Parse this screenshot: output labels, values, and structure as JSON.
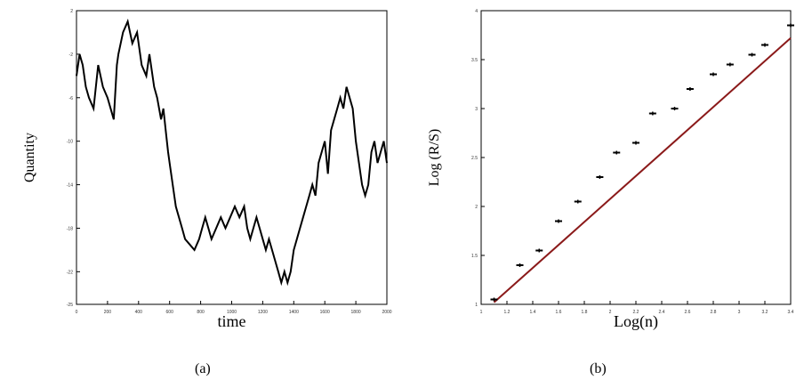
{
  "captions": {
    "a": "(a)",
    "b": "(b)"
  },
  "chart_data": [
    {
      "type": "line",
      "xlabel": "time",
      "ylabel": "Quantity",
      "xlim": [
        0,
        2000
      ],
      "ylim": [
        -25,
        2
      ],
      "x_ticks": [
        0,
        200,
        400,
        600,
        800,
        1000,
        1200,
        1400,
        1600,
        1800,
        2000
      ],
      "y_ticks": [
        2,
        -2,
        -6,
        -10,
        -14,
        -18,
        -22,
        -25
      ],
      "grid": false,
      "series": [
        {
          "color": "#000000",
          "x": [
            0,
            20,
            40,
            60,
            80,
            110,
            140,
            170,
            200,
            220,
            240,
            260,
            270,
            285,
            300,
            330,
            360,
            390,
            420,
            450,
            470,
            500,
            520,
            545,
            560,
            575,
            590,
            600,
            620,
            640,
            660,
            680,
            700,
            730,
            760,
            790,
            810,
            830,
            850,
            870,
            900,
            930,
            960,
            990,
            1020,
            1050,
            1080,
            1100,
            1120,
            1140,
            1160,
            1180,
            1200,
            1220,
            1240,
            1260,
            1280,
            1300,
            1320,
            1340,
            1360,
            1380,
            1400,
            1420,
            1440,
            1460,
            1480,
            1500,
            1520,
            1540,
            1560,
            1580,
            1600,
            1620,
            1640,
            1660,
            1680,
            1700,
            1720,
            1740,
            1760,
            1780,
            1800,
            1820,
            1840,
            1860,
            1880,
            1900,
            1920,
            1940,
            1960,
            1980,
            2000
          ],
          "y": [
            -4,
            -2,
            -3,
            -5,
            -6,
            -7,
            -3,
            -5,
            -6,
            -7,
            -8,
            -3,
            -2,
            -1,
            0,
            1,
            -1,
            0,
            -3,
            -4,
            -2,
            -5,
            -6,
            -8,
            -7,
            -9,
            -11,
            -12,
            -14,
            -16,
            -17,
            -18,
            -19,
            -19.5,
            -20,
            -19,
            -18,
            -17,
            -18,
            -19,
            -18,
            -17,
            -18,
            -17,
            -16,
            -17,
            -16,
            -18,
            -19,
            -18,
            -17,
            -18,
            -19,
            -20,
            -19,
            -20,
            -21,
            -22,
            -23,
            -22,
            -23,
            -22,
            -20,
            -19,
            -18,
            -17,
            -16,
            -15,
            -14,
            -15,
            -12,
            -11,
            -10,
            -13,
            -9,
            -8,
            -7,
            -6,
            -7,
            -5,
            -6,
            -7,
            -10,
            -12,
            -14,
            -15,
            -14,
            -11,
            -10,
            -12,
            -11,
            -10,
            -12
          ]
        }
      ]
    },
    {
      "type": "scatter",
      "xlabel": "Log(n)",
      "ylabel": "Log (R/S)",
      "xlim": [
        1,
        3.4
      ],
      "ylim": [
        1,
        4
      ],
      "x_ticks": [
        1,
        1.2,
        1.4,
        1.6,
        1.8,
        2,
        2.2,
        2.4,
        2.6,
        2.8,
        3,
        3.2,
        3.4
      ],
      "y_ticks": [
        1,
        1.5,
        2,
        2.5,
        3,
        3.5,
        4
      ],
      "grid": false,
      "fit_line": {
        "color": "#8b1a1a",
        "x": [
          1.1,
          3.4
        ],
        "y": [
          1.02,
          3.72
        ]
      },
      "series": [
        {
          "color": "#000000",
          "x": [
            1.1,
            1.3,
            1.45,
            1.6,
            1.75,
            1.92,
            2.05,
            2.2,
            2.33,
            2.5,
            2.62,
            2.8,
            2.93,
            3.1,
            3.2,
            3.4
          ],
          "y": [
            1.05,
            1.4,
            1.55,
            1.85,
            2.05,
            2.3,
            2.55,
            2.65,
            2.95,
            3.0,
            3.2,
            3.35,
            3.45,
            3.55,
            3.65,
            3.85
          ]
        }
      ]
    }
  ]
}
